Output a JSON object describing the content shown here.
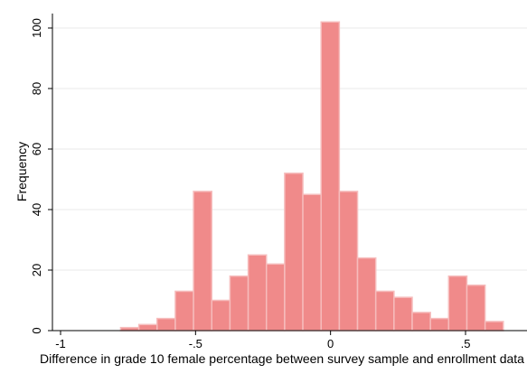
{
  "chart_data": {
    "type": "bar",
    "subtype": "histogram",
    "xlabel": "Difference in grade 10 female percentage between survey sample and enrollment data",
    "ylabel": "Frequency",
    "xlim": [
      -1,
      0.65
    ],
    "ylim": [
      0,
      105
    ],
    "x_ticks": [
      {
        "value": -1,
        "label": "-1"
      },
      {
        "value": -0.5,
        "label": "-.5"
      },
      {
        "value": 0,
        "label": "0"
      },
      {
        "value": 0.5,
        "label": ".5"
      }
    ],
    "y_ticks": [
      {
        "value": 0,
        "label": "0"
      },
      {
        "value": 20,
        "label": "20"
      },
      {
        "value": 40,
        "label": "40"
      },
      {
        "value": 60,
        "label": "60"
      },
      {
        "value": 80,
        "label": "80"
      },
      {
        "value": 100,
        "label": "100"
      }
    ],
    "grid": true,
    "bin_width": 0.0675,
    "bins": [
      {
        "x0": -0.7775,
        "x1": -0.71,
        "count": 1
      },
      {
        "x0": -0.71,
        "x1": -0.6425,
        "count": 2
      },
      {
        "x0": -0.6425,
        "x1": -0.575,
        "count": 4
      },
      {
        "x0": -0.575,
        "x1": -0.5075,
        "count": 13
      },
      {
        "x0": -0.5075,
        "x1": -0.44,
        "count": 46
      },
      {
        "x0": -0.44,
        "x1": -0.3725,
        "count": 10
      },
      {
        "x0": -0.3725,
        "x1": -0.305,
        "count": 18
      },
      {
        "x0": -0.305,
        "x1": -0.2375,
        "count": 25
      },
      {
        "x0": -0.2375,
        "x1": -0.17,
        "count": 22
      },
      {
        "x0": -0.17,
        "x1": -0.1025,
        "count": 52
      },
      {
        "x0": -0.1025,
        "x1": -0.035,
        "count": 45
      },
      {
        "x0": -0.035,
        "x1": 0.0325,
        "count": 102
      },
      {
        "x0": 0.0325,
        "x1": 0.1,
        "count": 46
      },
      {
        "x0": 0.1,
        "x1": 0.1675,
        "count": 24
      },
      {
        "x0": 0.1675,
        "x1": 0.235,
        "count": 13
      },
      {
        "x0": 0.235,
        "x1": 0.3025,
        "count": 11
      },
      {
        "x0": 0.3025,
        "x1": 0.37,
        "count": 6
      },
      {
        "x0": 0.37,
        "x1": 0.4375,
        "count": 4
      },
      {
        "x0": 0.4375,
        "x1": 0.505,
        "count": 18
      },
      {
        "x0": 0.505,
        "x1": 0.5725,
        "count": 15
      },
      {
        "x0": 0.5725,
        "x1": 0.64,
        "count": 3
      }
    ],
    "colors": {
      "bar_fill": "#f08a8a",
      "bar_stroke": "#f6bcbc",
      "grid": "#eaeaea",
      "axis": "#000000"
    }
  }
}
